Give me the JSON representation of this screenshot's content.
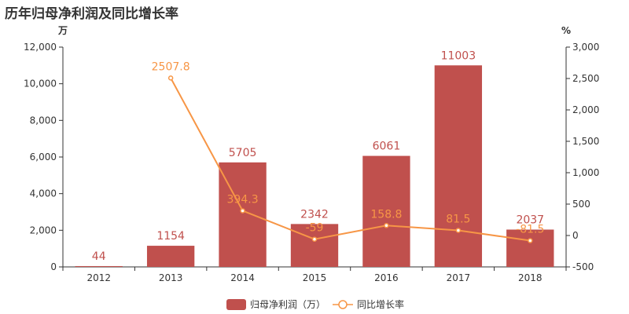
{
  "chart_data": {
    "type": "bar",
    "title": "历年归母净利润及同比增长率",
    "left_unit": "万",
    "right_unit": "%",
    "categories": [
      "2012",
      "2013",
      "2014",
      "2015",
      "2016",
      "2017",
      "2018"
    ],
    "left_axis": {
      "min": 0,
      "max": 12000,
      "ticks": [
        "0",
        "2,000",
        "4,000",
        "6,000",
        "8,000",
        "10,000",
        "12,000"
      ]
    },
    "right_axis": {
      "min": -500,
      "max": 3000,
      "ticks": [
        "-500",
        "0",
        "500",
        "1,000",
        "1,500",
        "2,000",
        "2,500",
        "3,000"
      ]
    },
    "series": [
      {
        "name": "归母净利润（万）",
        "type": "bar",
        "axis": "left",
        "values": [
          44,
          1154,
          5705,
          2342,
          6061,
          11003,
          2037
        ],
        "labels": [
          "44",
          "1154",
          "5705",
          "2342",
          "6061",
          "11003",
          "2037"
        ]
      },
      {
        "name": "同比增长率",
        "type": "line",
        "axis": "right",
        "values": [
          null,
          2507.8,
          394.3,
          -59,
          158.8,
          81.5,
          -81.5
        ],
        "labels": [
          "",
          "2507.8",
          "394.3",
          "-59",
          "158.8",
          "81.5",
          "-81.5"
        ]
      }
    ],
    "colors": {
      "bar": "#c0504d",
      "line": "#f79646",
      "axis": "#333333"
    },
    "legend_position": "bottom-center",
    "grid": false
  }
}
